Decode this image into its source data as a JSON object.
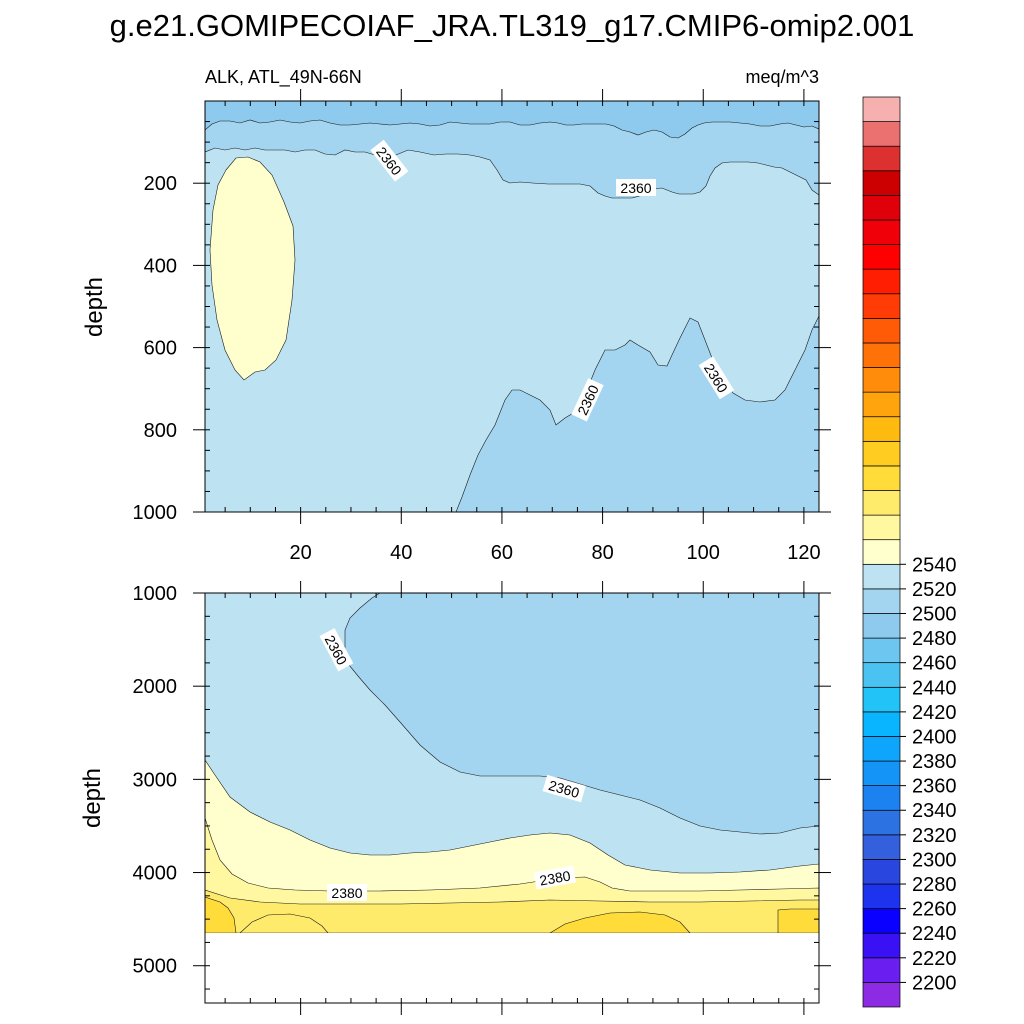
{
  "title": "g.e21.GOMIPECOIAF_JRA.TL319_g17.CMIP6-omip2.001",
  "chart_data": {
    "type": "contour",
    "variable_label": "ALK, ATL_49N-66N",
    "units_label": "meq/m^3",
    "x_ticks": [
      "20",
      "40",
      "60",
      "80",
      "100",
      "120"
    ],
    "x_range": [
      1,
      123
    ],
    "panels": [
      {
        "id": "upper",
        "ylabel": "depth",
        "y_range": [
          0,
          1000
        ],
        "y_ticks": [
          "200",
          "400",
          "600",
          "800",
          "1000"
        ],
        "regions": [
          {
            "range": "2360-2370",
            "color": "#bde3f3"
          },
          {
            "range": "2350-2360",
            "color": "#a3d4f0"
          },
          {
            "range": "2340-2350",
            "color": "#8dcaee"
          },
          {
            "range": "2370-2380",
            "color": "#ffffcd"
          }
        ],
        "contour_labels": [
          "2360",
          "2360",
          "2360",
          "2360"
        ]
      },
      {
        "id": "lower",
        "ylabel": "depth",
        "y_range": [
          1000,
          5400
        ],
        "y_ticks": [
          "1000",
          "2000",
          "3000",
          "4000",
          "5000"
        ],
        "data_bottom_depth": 4600,
        "regions": [
          {
            "range": "2360-2370",
            "color": "#bde3f3"
          },
          {
            "range": "2350-2360",
            "color": "#a3d4f0"
          },
          {
            "range": "2370-2380",
            "color": "#ffffcd"
          },
          {
            "range": "2380-2390",
            "color": "#fff8a0"
          },
          {
            "range": "2390-2400",
            "color": "#ffeb6b"
          },
          {
            "range": "2400-2410",
            "color": "#ffdc3a"
          }
        ],
        "contour_labels": [
          "2360",
          "2360",
          "2380",
          "2380"
        ]
      }
    ],
    "colorbar": {
      "colors": [
        "#8c2be3",
        "#6a1ff0",
        "#3a10f5",
        "#0a00ff",
        "#1d33ee",
        "#2947df",
        "#3460dd",
        "#2d72e3",
        "#1b82ef",
        "#1494f7",
        "#0ea6fd",
        "#0ab5ff",
        "#22c3f7",
        "#4ac3f3",
        "#6cc6f0",
        "#8dcaee",
        "#a3d4f0",
        "#bde3f3",
        "#ffffcd",
        "#fff8a0",
        "#ffeb6b",
        "#ffdc3a",
        "#ffcc22",
        "#ffba10",
        "#ffa40d",
        "#ff8c0a",
        "#ff7208",
        "#ff5a06",
        "#ff3c05",
        "#ff1e02",
        "#ff0000",
        "#f00008",
        "#e0000a",
        "#cc0000",
        "#dd3030",
        "#eb7070",
        "#f7b0b0"
      ],
      "tick_labels": [
        "2200",
        "2220",
        "2240",
        "2260",
        "2280",
        "2300",
        "2320",
        "2340",
        "2360",
        "2380",
        "2400",
        "2420",
        "2440",
        "2460",
        "2480",
        "2500",
        "2520",
        "2540"
      ]
    }
  }
}
